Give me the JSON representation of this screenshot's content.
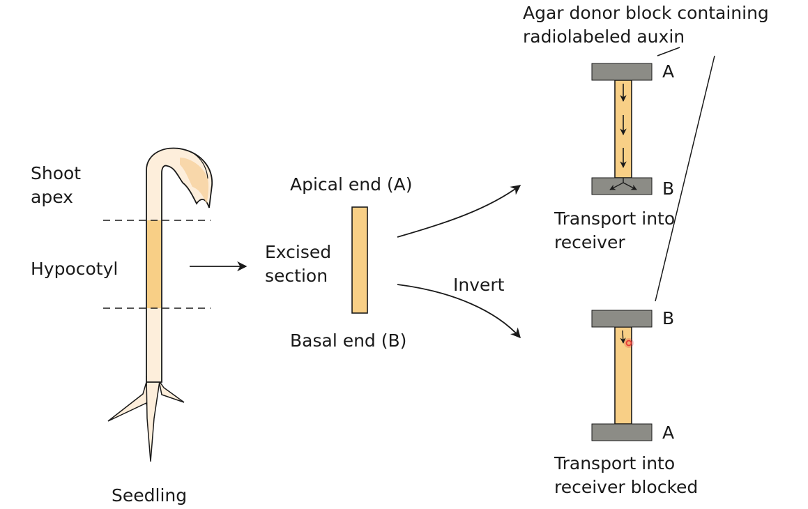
{
  "seedling": {
    "shoot_apex_label": [
      "Shoot",
      "apex"
    ],
    "hypocotyl_label": "Hypocotyl",
    "caption": "Seedling"
  },
  "section": {
    "apical_label": "Apical end (A)",
    "excised_label": [
      "Excised",
      "section"
    ],
    "basal_label": "Basal end (B)",
    "invert_label": "Invert"
  },
  "experiment": {
    "agar_label": [
      "Agar donor block containing",
      "radiolabeled auxin"
    ],
    "upright": {
      "top_label": "A",
      "bottom_label": "B",
      "caption": [
        "Transport into",
        "receiver"
      ]
    },
    "inverted": {
      "top_label": "B",
      "bottom_label": "A",
      "caption": [
        "Transport into",
        "receiver blocked"
      ]
    }
  },
  "colors": {
    "tissue": "#f8cf86",
    "seedling_fill": "#fdeedb",
    "agar_block": "#8c8c86",
    "line": "#1a1a1a",
    "cursor": "#e53935"
  }
}
